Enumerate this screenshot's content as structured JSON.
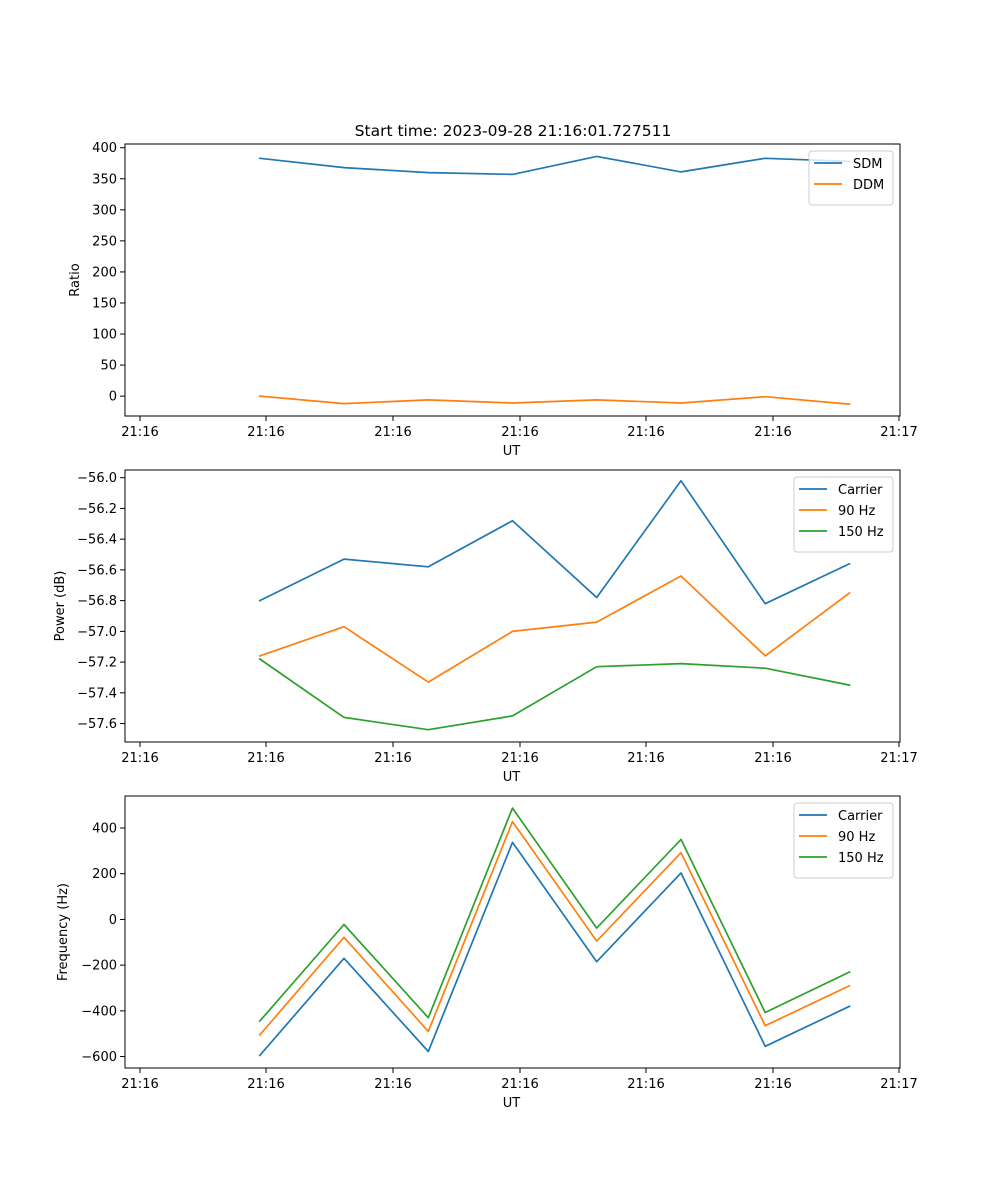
{
  "title": "Start time: 2023-09-28 21:16:01.727511",
  "chart_data": [
    {
      "type": "line",
      "xlabel": "UT",
      "ylabel": "Ratio",
      "x_tick_labels": [
        "21:16",
        "21:16",
        "21:16",
        "21:16",
        "21:16",
        "21:16",
        "21:17"
      ],
      "xlim": [
        -0.6,
        8.6
      ],
      "ylim": [
        -32,
        406
      ],
      "y_ticks": [
        "0",
        "50",
        "100",
        "150",
        "200",
        "250",
        "300",
        "350",
        "400"
      ],
      "y_tick_values": [
        0,
        50,
        100,
        150,
        200,
        250,
        300,
        350,
        400
      ],
      "x": [
        1,
        2,
        3,
        4,
        5,
        6,
        7,
        8
      ],
      "legend": "top-right",
      "series": [
        {
          "name": "SDM",
          "color": "#1f77b4",
          "values": [
            383,
            368,
            360,
            357,
            386,
            361,
            383,
            378
          ]
        },
        {
          "name": "DDM",
          "color": "#ff7f0e",
          "values": [
            0,
            -12,
            -6,
            -11,
            -6,
            -11,
            -1,
            -13
          ]
        }
      ]
    },
    {
      "type": "line",
      "xlabel": "UT",
      "ylabel": "Power (dB)",
      "x_tick_labels": [
        "21:16",
        "21:16",
        "21:16",
        "21:16",
        "21:16",
        "21:16",
        "21:17"
      ],
      "xlim": [
        -0.6,
        8.6
      ],
      "ylim": [
        -57.72,
        -55.95
      ],
      "y_ticks": [
        "−57.6",
        "−57.4",
        "−57.2",
        "−57.0",
        "−56.8",
        "−56.6",
        "−56.4",
        "−56.2",
        "−56.0"
      ],
      "y_tick_values": [
        -57.6,
        -57.4,
        -57.2,
        -57.0,
        -56.8,
        -56.6,
        -56.4,
        -56.2,
        -56.0
      ],
      "x": [
        1,
        2,
        3,
        4,
        5,
        6,
        7,
        8
      ],
      "legend": "top-right",
      "series": [
        {
          "name": "Carrier",
          "color": "#1f77b4",
          "values": [
            -56.8,
            -56.53,
            -56.58,
            -56.28,
            -56.78,
            -56.02,
            -56.82,
            -56.56
          ]
        },
        {
          "name": "90 Hz",
          "color": "#ff7f0e",
          "values": [
            -57.16,
            -56.97,
            -57.33,
            -57.0,
            -56.94,
            -56.64,
            -57.16,
            -56.75
          ]
        },
        {
          "name": "150 Hz",
          "color": "#2ca02c",
          "values": [
            -57.18,
            -57.56,
            -57.64,
            -57.55,
            -57.23,
            -57.21,
            -57.24,
            -57.35
          ]
        }
      ]
    },
    {
      "type": "line",
      "xlabel": "UT",
      "ylabel": "Frequency (Hz)",
      "x_tick_labels": [
        "21:16",
        "21:16",
        "21:16",
        "21:16",
        "21:16",
        "21:16",
        "21:17"
      ],
      "xlim": [
        -0.6,
        8.6
      ],
      "ylim": [
        -650,
        540
      ],
      "y_ticks": [
        "−600",
        "−400",
        "−200",
        "0",
        "200",
        "400"
      ],
      "y_tick_values": [
        -600,
        -400,
        -200,
        0,
        200,
        400
      ],
      "x": [
        1,
        2,
        3,
        4,
        5,
        6,
        7,
        8
      ],
      "legend": "top-right",
      "series": [
        {
          "name": "Carrier",
          "color": "#1f77b4",
          "values": [
            -595,
            -170,
            -578,
            337,
            -185,
            203,
            -555,
            -380
          ]
        },
        {
          "name": "90 Hz",
          "color": "#ff7f0e",
          "values": [
            -505,
            -78,
            -490,
            428,
            -95,
            292,
            -465,
            -290
          ]
        },
        {
          "name": "150 Hz",
          "color": "#2ca02c",
          "values": [
            -445,
            -22,
            -430,
            487,
            -38,
            350,
            -407,
            -230
          ]
        }
      ]
    }
  ]
}
